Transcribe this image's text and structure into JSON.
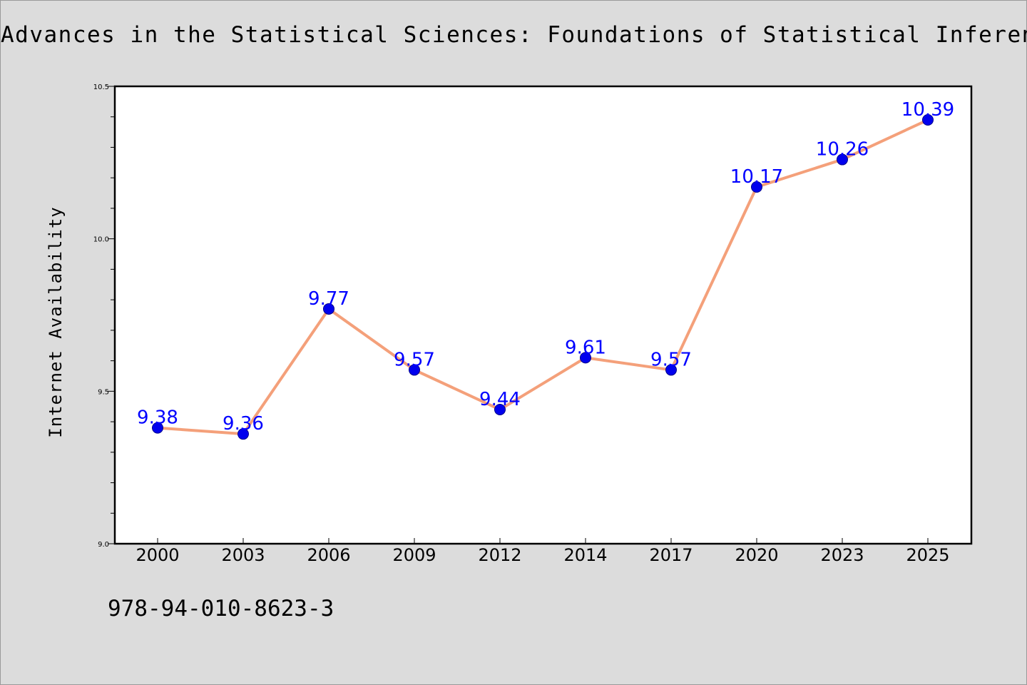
{
  "page": {
    "footer_code": "978-94-010-8623-3"
  },
  "chart_data": {
    "type": "line",
    "title": "Advances in the Statistical Sciences: Foundations of Statistical Inference",
    "xlabel": "",
    "ylabel": "Internet Availability",
    "categories": [
      "2000",
      "2003",
      "2006",
      "2009",
      "2012",
      "2014",
      "2017",
      "2020",
      "2023",
      "2025"
    ],
    "series": [
      {
        "values": [
          9.38,
          9.36,
          9.77,
          9.57,
          9.44,
          9.61,
          9.57,
          10.17,
          10.26,
          10.39
        ],
        "data_labels": [
          "9.38",
          "9.36",
          "9.77",
          "9.57",
          "9.44",
          "9.61",
          "9.57",
          "10.17",
          "10.26",
          "10.39"
        ],
        "line_color": "#f4a07a",
        "marker_color": "#0000ee",
        "label_color": "#0000ff"
      }
    ],
    "ylim": [
      9.0,
      10.5
    ],
    "y_ticks": [
      9.0,
      9.5,
      10.0,
      10.5
    ],
    "y_tick_labels": [
      "9.0",
      "9.5",
      "10.0",
      "10.5"
    ],
    "grid": false,
    "legend": "none",
    "background": "#dcdcdc",
    "plot_background": "#ffffff"
  }
}
